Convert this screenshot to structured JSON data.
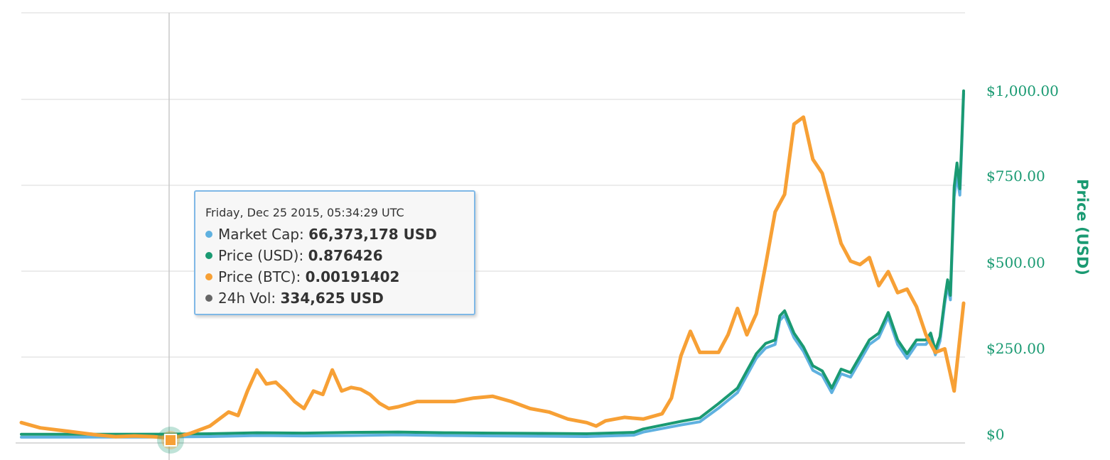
{
  "chart_data": {
    "type": "line",
    "title": "",
    "x_range": [
      "2015-04-14",
      "2017-06-12"
    ],
    "y_axis": {
      "label": "Price (USD)",
      "ticks": [
        "$0",
        "$250.00",
        "$500.00",
        "$750.00",
        "$1,000.00"
      ],
      "tick_values": [
        0,
        250,
        500,
        750,
        1000
      ],
      "ylim": [
        0,
        1000
      ],
      "position": "right"
    },
    "grid": true,
    "series": [
      {
        "name": "Market Cap",
        "color": "#5fb1e0",
        "axis": "hidden",
        "values": [
          [
            0.0,
            0.3
          ],
          [
            0.15,
            0.6
          ],
          [
            0.2,
            2
          ],
          [
            0.25,
            5
          ],
          [
            0.3,
            4
          ],
          [
            0.35,
            5
          ],
          [
            0.4,
            7
          ],
          [
            0.45,
            5
          ],
          [
            0.5,
            4
          ],
          [
            0.55,
            3
          ],
          [
            0.6,
            2
          ],
          [
            0.65,
            6
          ],
          [
            0.66,
            15
          ],
          [
            0.7,
            36
          ],
          [
            0.72,
            45
          ],
          [
            0.74,
            85
          ],
          [
            0.76,
            130
          ],
          [
            0.77,
            180
          ],
          [
            0.78,
            230
          ],
          [
            0.79,
            260
          ],
          [
            0.8,
            270
          ],
          [
            0.805,
            340
          ],
          [
            0.81,
            355
          ],
          [
            0.82,
            290
          ],
          [
            0.83,
            250
          ],
          [
            0.84,
            195
          ],
          [
            0.85,
            180
          ],
          [
            0.86,
            130
          ],
          [
            0.87,
            185
          ],
          [
            0.88,
            175
          ],
          [
            0.9,
            270
          ],
          [
            0.91,
            290
          ],
          [
            0.92,
            350
          ],
          [
            0.93,
            270
          ],
          [
            0.94,
            230
          ],
          [
            0.95,
            270
          ],
          [
            0.96,
            270
          ],
          [
            0.965,
            290
          ],
          [
            0.97,
            240
          ],
          [
            0.975,
            280
          ],
          [
            0.98,
            390
          ],
          [
            0.983,
            440
          ],
          [
            0.986,
            400
          ],
          [
            0.99,
            700
          ],
          [
            0.993,
            760
          ],
          [
            0.996,
            705
          ],
          [
            0.998,
            840
          ],
          [
            1.0,
            1000
          ]
        ]
      },
      {
        "name": "Price (USD)",
        "color": "#1a9a72",
        "axis": "right",
        "values": [
          [
            0.0,
            0.5
          ],
          [
            0.15,
            0.8
          ],
          [
            0.2,
            2
          ],
          [
            0.25,
            5
          ],
          [
            0.3,
            4
          ],
          [
            0.35,
            6
          ],
          [
            0.4,
            7
          ],
          [
            0.45,
            5
          ],
          [
            0.5,
            4
          ],
          [
            0.55,
            3
          ],
          [
            0.6,
            2
          ],
          [
            0.65,
            6
          ],
          [
            0.66,
            16
          ],
          [
            0.7,
            38
          ],
          [
            0.72,
            48
          ],
          [
            0.74,
            90
          ],
          [
            0.76,
            135
          ],
          [
            0.77,
            185
          ],
          [
            0.78,
            235
          ],
          [
            0.79,
            265
          ],
          [
            0.8,
            275
          ],
          [
            0.805,
            345
          ],
          [
            0.81,
            360
          ],
          [
            0.82,
            295
          ],
          [
            0.83,
            255
          ],
          [
            0.84,
            200
          ],
          [
            0.85,
            185
          ],
          [
            0.86,
            135
          ],
          [
            0.87,
            190
          ],
          [
            0.88,
            180
          ],
          [
            0.9,
            275
          ],
          [
            0.91,
            295
          ],
          [
            0.92,
            355
          ],
          [
            0.93,
            275
          ],
          [
            0.94,
            235
          ],
          [
            0.95,
            275
          ],
          [
            0.96,
            275
          ],
          [
            0.965,
            295
          ],
          [
            0.97,
            245
          ],
          [
            0.975,
            285
          ],
          [
            0.98,
            395
          ],
          [
            0.983,
            450
          ],
          [
            0.986,
            405
          ],
          [
            0.99,
            720
          ],
          [
            0.993,
            790
          ],
          [
            0.996,
            715
          ],
          [
            0.998,
            850
          ],
          [
            1.0,
            1000
          ]
        ]
      },
      {
        "name": "Price (BTC)",
        "color": "#f7a035",
        "axis": "hidden",
        "values": [
          [
            0.0,
            50
          ],
          [
            0.02,
            35
          ],
          [
            0.05,
            25
          ],
          [
            0.08,
            15
          ],
          [
            0.1,
            10
          ],
          [
            0.12,
            12
          ],
          [
            0.14,
            10
          ],
          [
            0.16,
            5
          ],
          [
            0.18,
            20
          ],
          [
            0.2,
            40
          ],
          [
            0.22,
            80
          ],
          [
            0.23,
            70
          ],
          [
            0.24,
            140
          ],
          [
            0.25,
            200
          ],
          [
            0.26,
            160
          ],
          [
            0.27,
            165
          ],
          [
            0.28,
            140
          ],
          [
            0.29,
            110
          ],
          [
            0.3,
            90
          ],
          [
            0.31,
            140
          ],
          [
            0.32,
            130
          ],
          [
            0.33,
            200
          ],
          [
            0.34,
            140
          ],
          [
            0.35,
            150
          ],
          [
            0.36,
            145
          ],
          [
            0.37,
            130
          ],
          [
            0.38,
            105
          ],
          [
            0.39,
            90
          ],
          [
            0.4,
            95
          ],
          [
            0.42,
            110
          ],
          [
            0.44,
            110
          ],
          [
            0.46,
            110
          ],
          [
            0.48,
            120
          ],
          [
            0.5,
            125
          ],
          [
            0.52,
            110
          ],
          [
            0.54,
            90
          ],
          [
            0.56,
            80
          ],
          [
            0.58,
            60
          ],
          [
            0.6,
            50
          ],
          [
            0.61,
            40
          ],
          [
            0.62,
            55
          ],
          [
            0.64,
            65
          ],
          [
            0.66,
            60
          ],
          [
            0.68,
            75
          ],
          [
            0.69,
            120
          ],
          [
            0.7,
            240
          ],
          [
            0.71,
            310
          ],
          [
            0.72,
            250
          ],
          [
            0.74,
            250
          ],
          [
            0.75,
            300
          ],
          [
            0.76,
            375
          ],
          [
            0.77,
            300
          ],
          [
            0.78,
            360
          ],
          [
            0.79,
            500
          ],
          [
            0.8,
            650
          ],
          [
            0.81,
            700
          ],
          [
            0.82,
            900
          ],
          [
            0.83,
            920
          ],
          [
            0.84,
            800
          ],
          [
            0.85,
            760
          ],
          [
            0.86,
            660
          ],
          [
            0.87,
            560
          ],
          [
            0.88,
            510
          ],
          [
            0.89,
            500
          ],
          [
            0.9,
            520
          ],
          [
            0.91,
            440
          ],
          [
            0.92,
            480
          ],
          [
            0.93,
            420
          ],
          [
            0.94,
            430
          ],
          [
            0.95,
            380
          ],
          [
            0.96,
            300
          ],
          [
            0.97,
            250
          ],
          [
            0.98,
            260
          ],
          [
            0.99,
            140
          ],
          [
            1.0,
            390
          ]
        ]
      },
      {
        "name": "24h Vol",
        "color": "#666666",
        "axis": "hidden"
      }
    ]
  },
  "tooltip": {
    "date": "Friday, Dec 25 2015, 05:34:29 UTC",
    "rows": [
      {
        "label": "Market Cap:",
        "value": "66,373,178 USD",
        "color": "#5fb1e0"
      },
      {
        "label": "Price (USD):",
        "value": "0.876426",
        "color": "#1a9a72"
      },
      {
        "label": "Price (BTC):",
        "value": "0.00191402",
        "color": "#f7a035"
      },
      {
        "label": "24h Vol:",
        "value": "334,625 USD",
        "color": "#666666"
      }
    ]
  }
}
